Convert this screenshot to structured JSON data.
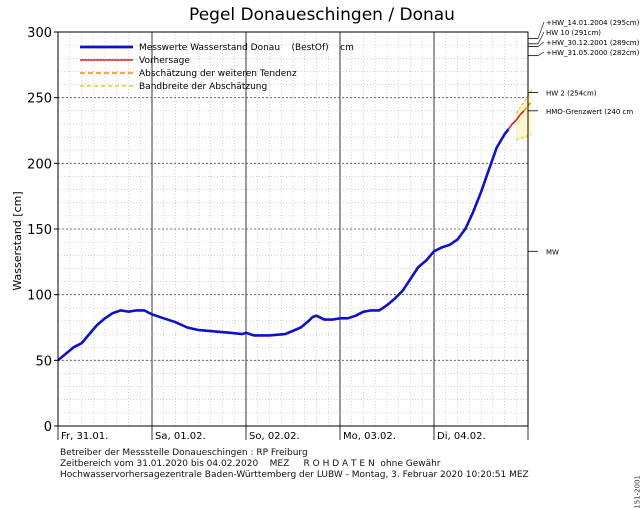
{
  "chart_data": {
    "type": "line",
    "title": "Pegel Donaueschingen / Donau",
    "ylabel": "Wasserstand [cm]",
    "ylim": [
      0,
      300
    ],
    "yticks": [
      0,
      50,
      100,
      150,
      200,
      250,
      300
    ],
    "x_range": [
      "31.01.2020 00:00",
      "05.02.2020 00:00"
    ],
    "x_tick_labels": [
      "Fr, 31.01.",
      "Sa, 01.02.",
      "So, 02.02.",
      "Mo, 03.02.",
      "Di, 04.02."
    ],
    "grid": true,
    "legend_position": "top-left",
    "legend": [
      "Messwerte Wasserstand Donau    (BestOf)    cm",
      "Vorhersage",
      "Abschätzung der weiteren Tendenz",
      "Bandbreite der Abschätzung"
    ],
    "series": [
      {
        "name": "Messwerte Wasserstand Donau    (BestOf)    cm",
        "color": "#1010c8",
        "style": "solid",
        "points": [
          [
            "31.01.2020 00:00",
            50
          ],
          [
            "31.01.2020 02:00",
            55
          ],
          [
            "31.01.2020 04:00",
            60
          ],
          [
            "31.01.2020 06:00",
            63
          ],
          [
            "31.01.2020 08:00",
            70
          ],
          [
            "31.01.2020 10:00",
            77
          ],
          [
            "31.01.2020 12:00",
            82
          ],
          [
            "31.01.2020 14:00",
            86
          ],
          [
            "31.01.2020 16:00",
            88
          ],
          [
            "31.01.2020 18:00",
            87
          ],
          [
            "31.01.2020 20:00",
            88
          ],
          [
            "31.01.2020 22:00",
            88
          ],
          [
            "01.02.2020 00:00",
            85
          ],
          [
            "01.02.2020 03:00",
            82
          ],
          [
            "01.02.2020 06:00",
            79
          ],
          [
            "01.02.2020 09:00",
            75
          ],
          [
            "01.02.2020 12:00",
            73
          ],
          [
            "01.02.2020 16:00",
            72
          ],
          [
            "01.02.2020 20:00",
            71
          ],
          [
            "01.02.2020 23:00",
            70
          ],
          [
            "02.02.2020 00:00",
            71
          ],
          [
            "02.02.2020 02:00",
            69
          ],
          [
            "02.02.2020 06:00",
            69
          ],
          [
            "02.02.2020 10:00",
            70
          ],
          [
            "02.02.2020 14:00",
            75
          ],
          [
            "02.02.2020 16:00",
            80
          ],
          [
            "02.02.2020 17:00",
            83
          ],
          [
            "02.02.2020 18:00",
            84
          ],
          [
            "02.02.2020 20:00",
            81
          ],
          [
            "02.02.2020 22:00",
            81
          ],
          [
            "03.02.2020 00:00",
            82
          ],
          [
            "03.02.2020 02:00",
            82
          ],
          [
            "03.02.2020 04:00",
            84
          ],
          [
            "03.02.2020 06:00",
            87
          ],
          [
            "03.02.2020 08:00",
            88
          ],
          [
            "03.02.2020 10:00",
            88
          ],
          [
            "03.02.2020 12:00",
            92
          ],
          [
            "03.02.2020 14:00",
            97
          ],
          [
            "03.02.2020 16:00",
            103
          ],
          [
            "03.02.2020 18:00",
            112
          ],
          [
            "03.02.2020 20:00",
            121
          ],
          [
            "03.02.2020 22:00",
            126
          ],
          [
            "04.02.2020 00:00",
            133
          ],
          [
            "04.02.2020 02:00",
            136
          ],
          [
            "04.02.2020 04:00",
            138
          ],
          [
            "04.02.2020 06:00",
            142
          ],
          [
            "04.02.2020 08:00",
            150
          ],
          [
            "04.02.2020 10:00",
            163
          ],
          [
            "04.02.2020 12:00",
            178
          ],
          [
            "04.02.2020 14:00",
            195
          ],
          [
            "04.02.2020 16:00",
            212
          ],
          [
            "04.02.2020 18:00",
            222
          ],
          [
            "04.02.2020 19:00",
            226
          ]
        ]
      },
      {
        "name": "Vorhersage",
        "color": "#d02020",
        "style": "solid",
        "points": [
          [
            "04.02.2020 19:00",
            226
          ],
          [
            "04.02.2020 20:00",
            230
          ],
          [
            "04.02.2020 21:00",
            233
          ],
          [
            "04.02.2020 22:00",
            237
          ],
          [
            "04.02.2020 23:00",
            240
          ]
        ]
      },
      {
        "name": "Abschätzung der weiteren Tendenz",
        "color": "#f08c00",
        "style": "dashed",
        "points": [
          [
            "04.02.2020 23:00",
            240
          ],
          [
            "05.02.2020 00:00",
            244
          ],
          [
            "05.02.2020 01:00",
            247
          ]
        ]
      }
    ],
    "band": {
      "name": "Bandbreite der Abschätzung",
      "color": "#e8c000",
      "upper": [
        [
          "04.02.2020 21:00",
          238
        ],
        [
          "05.02.2020 01:00",
          256
        ]
      ],
      "lower": [
        [
          "04.02.2020 21:00",
          218
        ],
        [
          "05.02.2020 01:00",
          222
        ]
      ]
    },
    "reference_lines": [
      {
        "label": "+HW_14.01.2004 (295cm)",
        "value": 295
      },
      {
        "label": "HW 10 (291cm)",
        "value": 291
      },
      {
        "label": "+HW_30.12.2001 (289cm)",
        "value": 289
      },
      {
        "label": "+HW_31.05.2000 (282cm)",
        "value": 282
      },
      {
        "label": "HW 2 (254cm)",
        "value": 254
      },
      {
        "label": "HMO-Grenzwert (240 cm",
        "value": 240
      },
      {
        "label": "MW",
        "value": 133
      }
    ]
  },
  "footer": {
    "line1": "Betreiber der Messstelle Donaueschingen : RP Freiburg",
    "line2": "Zeitbereich vom 31.01.2020 bis 04.02.2020    MEZ     R O H D A T E N  ohne Gewähr",
    "line3": "Hochwasservorhersagezentrale Baden-Württemberg der LUBW - Montag, 3. Februar 2020 10:20:51 MEZ",
    "vertical_id": "151-2001"
  }
}
